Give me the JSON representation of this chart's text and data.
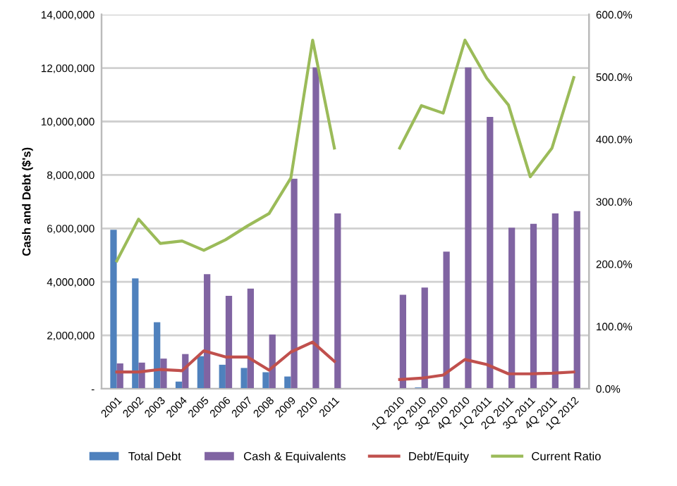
{
  "chart_data": {
    "type": "bar",
    "ylabel": "Cash and Debt ($'s)",
    "categories": [
      "2001",
      "2002",
      "2003",
      "2004",
      "2005",
      "2006",
      "2007",
      "2008",
      "2009",
      "2010",
      "2011",
      null,
      null,
      "1Q 2010",
      "2Q 2010",
      "3Q 2010",
      "4Q 2010",
      "1Q 2011",
      "2Q 2011",
      "3Q 2011",
      "4Q 2011",
      "1Q 2012"
    ],
    "series": [
      {
        "name": "Total Debt",
        "color": "#4f81bd",
        "values": [
          5950000,
          4130000,
          2490000,
          270000,
          1220000,
          900000,
          780000,
          620000,
          460000,
          0,
          0,
          null,
          null,
          20000,
          50000,
          0,
          0,
          0,
          0,
          0,
          0,
          0
        ]
      },
      {
        "name": "Cash & Equivalents",
        "color": "#8064a2",
        "values": [
          950000,
          980000,
          1130000,
          1300000,
          4290000,
          3480000,
          3750000,
          2030000,
          7860000,
          12020000,
          6560000,
          null,
          null,
          3520000,
          3790000,
          5130000,
          12020000,
          10170000,
          6030000,
          6170000,
          6560000,
          6650000
        ]
      },
      {
        "name": "Debt/Equity",
        "type": "line",
        "axis": "y2",
        "color": "#c0504d",
        "values": [
          27,
          27,
          31,
          29,
          61,
          51,
          51,
          30,
          59,
          75,
          44,
          null,
          null,
          15,
          17,
          22,
          47,
          39,
          24,
          24,
          25,
          27
        ]
      },
      {
        "name": "Current Ratio",
        "type": "line",
        "axis": "y2",
        "color": "#9bbb59",
        "values": [
          205,
          272,
          233,
          237,
          222,
          239,
          261,
          281,
          338,
          559,
          386,
          null,
          null,
          386,
          454,
          442,
          559,
          498,
          455,
          340,
          386,
          499
        ]
      }
    ],
    "ylim": [
      0,
      14000000
    ],
    "yticks": [
      {
        "value": 0,
        "label": "-"
      },
      {
        "value": 2000000,
        "label": "2,000,000"
      },
      {
        "value": 4000000,
        "label": "4,000,000"
      },
      {
        "value": 6000000,
        "label": "6,000,000"
      },
      {
        "value": 8000000,
        "label": "8,000,000"
      },
      {
        "value": 10000000,
        "label": "10,000,000"
      },
      {
        "value": 12000000,
        "label": "12,000,000"
      },
      {
        "value": 14000000,
        "label": "14,000,000"
      }
    ],
    "y2lim": [
      0,
      600
    ],
    "y2ticks": [
      {
        "value": 0,
        "label": "0.0%"
      },
      {
        "value": 100,
        "label": "100.0%"
      },
      {
        "value": 200,
        "label": "200.0%"
      },
      {
        "value": 300,
        "label": "300.0%"
      },
      {
        "value": 400,
        "label": "400.0%"
      },
      {
        "value": 500,
        "label": "500.0%"
      },
      {
        "value": 600,
        "label": "600.0%"
      }
    ],
    "grid": "y",
    "legend": "bottom",
    "marker": "none",
    "line_style": "solid"
  }
}
